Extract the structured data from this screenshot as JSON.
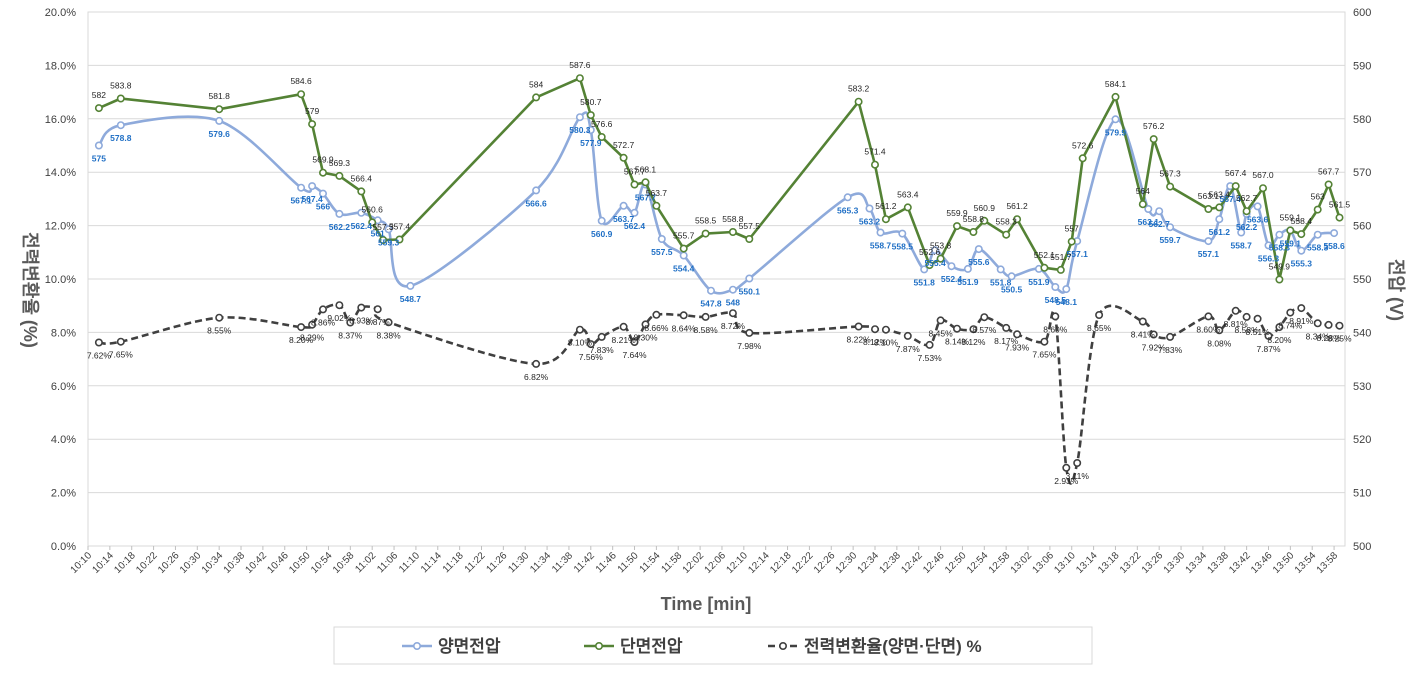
{
  "chart_data": {
    "type": "line",
    "x_label": "Time  [min]",
    "y_left_label": "전력변환율 (%)",
    "y_right_label": "전압 (V)",
    "y_left_range": [
      0,
      20
    ],
    "y_right_range": [
      500,
      600
    ],
    "y_left_ticks": [
      "0.0%",
      "2.0%",
      "4.0%",
      "6.0%",
      "8.0%",
      "10.0%",
      "12.0%",
      "14.0%",
      "16.0%",
      "18.0%",
      "20.0%"
    ],
    "y_right_ticks": [
      "500",
      "510",
      "520",
      "530",
      "540",
      "550",
      "560",
      "570",
      "580",
      "590",
      "600"
    ],
    "x_range": [
      "10:10",
      "14:00"
    ],
    "x_ticks": [
      "10:10",
      "10:14",
      "10:18",
      "10:22",
      "10:26",
      "10:30",
      "10:34",
      "10:38",
      "10:42",
      "10:46",
      "10:50",
      "10:54",
      "10:58",
      "11:02",
      "11:06",
      "11:10",
      "11:14",
      "11:18",
      "11:22",
      "11:26",
      "11:30",
      "11:34",
      "11:38",
      "11:42",
      "11:46",
      "11:50",
      "11:54",
      "11:58",
      "12:02",
      "12:06",
      "12:10",
      "12:14",
      "12:18",
      "12:22",
      "12:26",
      "12:30",
      "12:34",
      "12:38",
      "12:42",
      "12:46",
      "12:50",
      "12:54",
      "12:58",
      "13:02",
      "13:06",
      "13:10",
      "13:14",
      "13:18",
      "13:22",
      "13:26",
      "13:30",
      "13:34",
      "13:38",
      "13:42",
      "13:46",
      "13:50",
      "13:54",
      "13:58"
    ],
    "grid": "horizontal",
    "legend_position": "bottom",
    "series": [
      {
        "name": "양면전압",
        "axis": "right",
        "color": "#8eaadb",
        "label_color": "#1f6fc5",
        "label_position": "below",
        "smooth": true,
        "points": [
          [
            "10:12",
            575,
            "575"
          ],
          [
            "10:16",
            578.8,
            "578.8"
          ],
          [
            "10:34",
            579.6,
            "579.6"
          ],
          [
            "10:49",
            567.1,
            "567.1"
          ],
          [
            "10:51",
            567.4,
            "567.4"
          ],
          [
            "10:53",
            566,
            "566"
          ],
          [
            "10:56",
            562.2,
            "562.2"
          ],
          [
            "11:00",
            562.4,
            "562.4"
          ],
          [
            "11:03",
            561,
            "561"
          ],
          [
            "11:05",
            559.3,
            "559.3"
          ],
          [
            "11:09",
            548.7,
            "548.7"
          ],
          [
            "11:32",
            566.6,
            "566.6"
          ],
          [
            "11:40",
            580.3,
            "580.3"
          ],
          [
            "11:42",
            577.9,
            "577.9"
          ],
          [
            "11:44",
            560.9,
            "560.9"
          ],
          [
            "11:48",
            563.7,
            "563.7"
          ],
          [
            "11:50",
            562.4,
            "562.4"
          ],
          [
            "11:52",
            567.7,
            "567.7"
          ],
          [
            "11:55",
            557.5,
            "557.5"
          ],
          [
            "11:59",
            554.4,
            "554.4"
          ],
          [
            "12:04",
            547.8,
            "547.8"
          ],
          [
            "12:08",
            548,
            "548"
          ],
          [
            "12:11",
            550.1,
            "550.1"
          ],
          [
            "12:29",
            565.3,
            "565.3"
          ],
          [
            "12:33",
            563.2,
            "563.2"
          ],
          [
            "12:35",
            558.7,
            "558.7"
          ],
          [
            "12:39",
            558.5,
            "558.5"
          ],
          [
            "12:43",
            551.8,
            "551.8"
          ],
          [
            "12:45",
            555.4,
            "555.4"
          ],
          [
            "12:48",
            552.4,
            "552.4"
          ],
          [
            "12:51",
            551.9,
            "551.9"
          ],
          [
            "12:53",
            555.6,
            "555.6"
          ],
          [
            "12:57",
            551.8,
            "551.8"
          ],
          [
            "12:59",
            550.5,
            "550.5"
          ],
          [
            "13:04",
            551.9,
            "551.9"
          ],
          [
            "13:07",
            548.5,
            "548.5"
          ],
          [
            "13:09",
            548.1,
            "548.1"
          ],
          [
            "13:11",
            557.1,
            "557.1"
          ],
          [
            "13:18",
            579.9,
            "579.9"
          ],
          [
            "13:24",
            563.1,
            "563.1"
          ],
          [
            "13:26",
            562.7,
            "562.7"
          ],
          [
            "13:28",
            559.7,
            "559.7"
          ],
          [
            "13:35",
            557.1,
            "557.1"
          ],
          [
            "13:37",
            561.2,
            "561.2"
          ],
          [
            "13:39",
            567.4,
            "567.4"
          ],
          [
            "13:41",
            558.7,
            "558.7"
          ],
          [
            "13:42",
            562.2,
            "562.2"
          ],
          [
            "13:44",
            563.6,
            "563.6"
          ],
          [
            "13:46",
            556.3,
            "556.3"
          ],
          [
            "13:48",
            558.3,
            "558.3"
          ],
          [
            "13:50",
            559.1,
            "559.1"
          ],
          [
            "13:52",
            555.3,
            "555.3"
          ],
          [
            "13:55",
            558.3,
            "558.3"
          ],
          [
            "13:58",
            558.6,
            "558.6"
          ]
        ]
      },
      {
        "name": "단면전압",
        "axis": "right",
        "color": "#548235",
        "label_color": "#262626",
        "label_position": "above",
        "smooth": false,
        "points": [
          [
            "10:12",
            582,
            "582"
          ],
          [
            "10:16",
            583.8,
            "583.8"
          ],
          [
            "10:34",
            581.8,
            "581.8"
          ],
          [
            "10:49",
            584.6,
            "584.6"
          ],
          [
            "10:51",
            579,
            "579"
          ],
          [
            "10:53",
            569.9,
            "569.9"
          ],
          [
            "10:56",
            569.3,
            "569.3"
          ],
          [
            "11:00",
            566.4,
            "566.4"
          ],
          [
            "11:02",
            560.6,
            "560.6"
          ],
          [
            "11:04",
            557.3,
            "557.3"
          ],
          [
            "11:07",
            557.4,
            "557.4"
          ],
          [
            "11:32",
            584,
            "584"
          ],
          [
            "11:40",
            587.6,
            "587.6"
          ],
          [
            "11:42",
            580.7,
            "580.7"
          ],
          [
            "11:44",
            576.6,
            "576.6"
          ],
          [
            "11:48",
            572.7,
            "572.7"
          ],
          [
            "11:50",
            567.7,
            "567.7"
          ],
          [
            "11:52",
            568.1,
            "568.1"
          ],
          [
            "11:54",
            563.7,
            "563.7"
          ],
          [
            "11:59",
            555.7,
            "555.7"
          ],
          [
            "12:03",
            558.5,
            "558.5"
          ],
          [
            "12:08",
            558.8,
            "558.8"
          ],
          [
            "12:11",
            557.5,
            "557.5"
          ],
          [
            "12:31",
            583.2,
            "583.2"
          ],
          [
            "12:34",
            571.4,
            "571.4"
          ],
          [
            "12:36",
            561.2,
            "561.2"
          ],
          [
            "12:40",
            563.4,
            "563.4"
          ],
          [
            "12:44",
            552.6,
            "552.6"
          ],
          [
            "12:46",
            553.8,
            "553.8"
          ],
          [
            "12:49",
            559.9,
            "559.9"
          ],
          [
            "12:52",
            558.8,
            "558.8"
          ],
          [
            "12:54",
            560.9,
            "560.9"
          ],
          [
            "12:58",
            558.3,
            "558.3"
          ],
          [
            "13:00",
            561.2,
            "561.2"
          ],
          [
            "13:05",
            552.1,
            "552.1"
          ],
          [
            "13:08",
            551.7,
            "551.7"
          ],
          [
            "13:10",
            557,
            "557"
          ],
          [
            "13:12",
            572.6,
            "572.6"
          ],
          [
            "13:18",
            584.1,
            "584.1"
          ],
          [
            "13:23",
            564,
            "564"
          ],
          [
            "13:25",
            576.2,
            "576.2"
          ],
          [
            "13:28",
            567.3,
            "567.3"
          ],
          [
            "13:35",
            563.1,
            "563.1"
          ],
          [
            "13:37",
            563.4,
            "563.4"
          ],
          [
            "13:40",
            567.4,
            "567.4"
          ],
          [
            "13:42",
            562.7,
            "562.7"
          ],
          [
            "13:45",
            567.0,
            "567.0"
          ],
          [
            "13:48",
            549.9,
            "549.9"
          ],
          [
            "13:50",
            559.1,
            "559.1"
          ],
          [
            "13:52",
            558.4,
            "558.4"
          ],
          [
            "13:55",
            563,
            "563"
          ],
          [
            "13:57",
            567.7,
            "567.7"
          ],
          [
            "13:59",
            561.5,
            "561.5"
          ]
        ]
      },
      {
        "name": "전력변환율(양면·단면) %",
        "axis": "left",
        "color": "#404040",
        "label_color": "#262626",
        "label_position": "below",
        "smooth": true,
        "dashed": true,
        "points": [
          [
            "10:12",
            7.62,
            "7.62%"
          ],
          [
            "10:16",
            7.65,
            "7.65%"
          ],
          [
            "10:34",
            8.55,
            "8.55%"
          ],
          [
            "10:49",
            8.2,
            "8.20%"
          ],
          [
            "10:51",
            8.29,
            "8.29%"
          ],
          [
            "10:53",
            8.86,
            "8.86%"
          ],
          [
            "10:56",
            9.02,
            "9.02%"
          ],
          [
            "10:58",
            8.37,
            "8.37%"
          ],
          [
            "11:00",
            8.93,
            "8.93%"
          ],
          [
            "11:03",
            8.87,
            "8.87%"
          ],
          [
            "11:05",
            8.38,
            "8.38%"
          ],
          [
            "11:32",
            6.82,
            "6.82%"
          ],
          [
            "11:40",
            8.1,
            "8.10%"
          ],
          [
            "11:42",
            7.56,
            "7.56%"
          ],
          [
            "11:44",
            7.83,
            "7.83%"
          ],
          [
            "11:48",
            8.21,
            "8.21%"
          ],
          [
            "11:50",
            7.64,
            "7.64%"
          ],
          [
            "11:52",
            8.3,
            "8.30%"
          ],
          [
            "11:54",
            8.66,
            "8.66%"
          ],
          [
            "11:59",
            8.64,
            "8.64%"
          ],
          [
            "12:03",
            8.58,
            "8.58%"
          ],
          [
            "12:08",
            8.72,
            "8.72%"
          ],
          [
            "12:11",
            7.98,
            "7.98%"
          ],
          [
            "12:31",
            8.22,
            "8.22%"
          ],
          [
            "12:34",
            8.12,
            "8.12%"
          ],
          [
            "12:36",
            8.1,
            "8.10%"
          ],
          [
            "12:40",
            7.87,
            "7.87%"
          ],
          [
            "12:44",
            7.53,
            "7.53%"
          ],
          [
            "12:46",
            8.45,
            "8.45%"
          ],
          [
            "12:49",
            8.14,
            "8.14%"
          ],
          [
            "12:52",
            8.12,
            "8.12%"
          ],
          [
            "12:54",
            8.57,
            "8.57%"
          ],
          [
            "12:58",
            8.17,
            "8.17%"
          ],
          [
            "13:00",
            7.93,
            "7.93%"
          ],
          [
            "13:05",
            7.65,
            "7.65%"
          ],
          [
            "13:07",
            8.6,
            "8.60%"
          ],
          [
            "13:09",
            2.93,
            "2.93%"
          ],
          [
            "13:11",
            3.11,
            "3.11%"
          ],
          [
            "13:15",
            8.65,
            "8.65%"
          ],
          [
            "13:23",
            8.41,
            "8.41%"
          ],
          [
            "13:25",
            7.92,
            "7.92%"
          ],
          [
            "13:28",
            7.83,
            "7.83%"
          ],
          [
            "13:35",
            8.6,
            "8.60%"
          ],
          [
            "13:37",
            8.08,
            "8.08%"
          ],
          [
            "13:40",
            8.81,
            "8.81%"
          ],
          [
            "13:42",
            8.58,
            "8.58%"
          ],
          [
            "13:44",
            8.51,
            "8.51%"
          ],
          [
            "13:46",
            7.87,
            "7.87%"
          ],
          [
            "13:48",
            8.2,
            "8.20%"
          ],
          [
            "13:50",
            8.74,
            "8.74%"
          ],
          [
            "13:52",
            8.91,
            "8.91%"
          ],
          [
            "13:55",
            8.34,
            "8.34%"
          ],
          [
            "13:57",
            8.28,
            "8.28%"
          ],
          [
            "13:59",
            8.25,
            "8.25%"
          ]
        ]
      }
    ]
  }
}
